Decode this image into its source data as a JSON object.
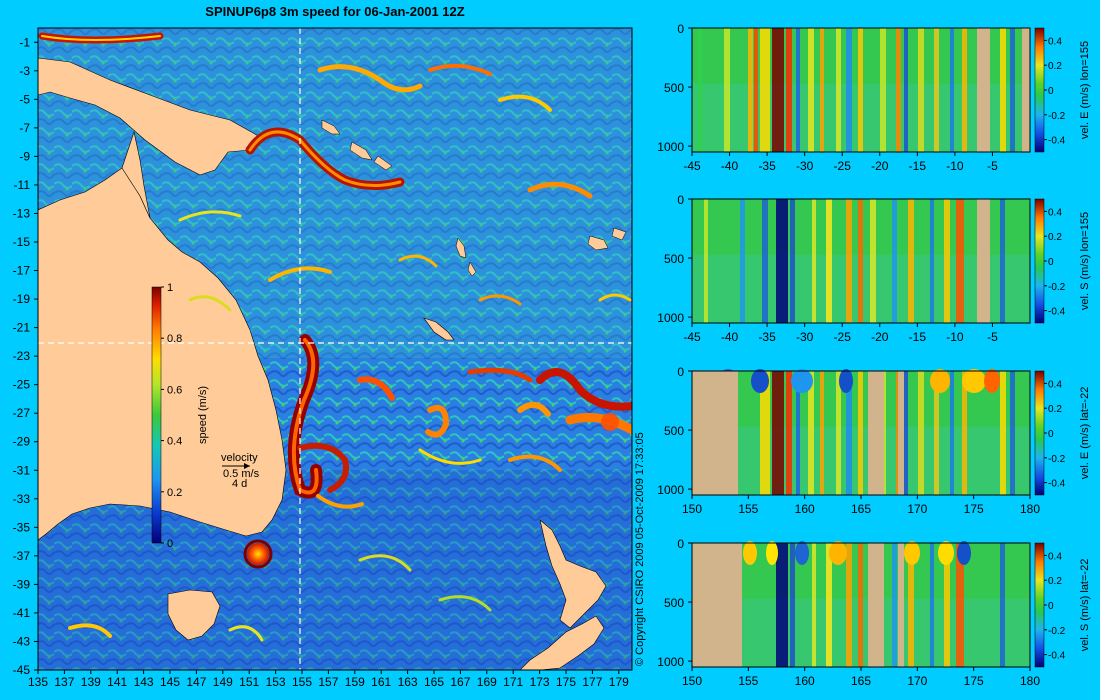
{
  "title": "SPINUP6p8 3m speed for 06-Jan-2001 12Z",
  "map": {
    "x_ticks": [
      "135",
      "137",
      "139",
      "141",
      "143",
      "145",
      "147",
      "149",
      "151",
      "153",
      "155",
      "157",
      "159",
      "161",
      "163",
      "165",
      "167",
      "169",
      "171",
      "173",
      "175",
      "177",
      "179"
    ],
    "y_ticks": [
      "-1",
      "-3",
      "-5",
      "-7",
      "-9",
      "-11",
      "-13",
      "-15",
      "-17",
      "-19",
      "-21",
      "-23",
      "-25",
      "-27",
      "-29",
      "-31",
      "-33",
      "-35",
      "-37",
      "-39",
      "-41",
      "-43",
      "-45"
    ],
    "lon_range": [
      135,
      180
    ],
    "lat_range": [
      -45,
      0
    ],
    "section_lon": 155,
    "section_lat": -22
  },
  "speed_colorbar": {
    "label": "speed (m/s)",
    "ticks": [
      "1",
      "0.8",
      "0.6",
      "0.4",
      "0.2",
      "0"
    ]
  },
  "velocity_key": {
    "line1": "velocity",
    "line2": "0.5 m/s",
    "line3": "4 d"
  },
  "copyright": "© Copyright CSIRO 2009   05-Oct-2009 17:33:05",
  "colors": {
    "background": "#00ccff",
    "land": "#ffcc99",
    "section_land": "#d2b48c",
    "ocean_low": "#1e64d2",
    "ocean_mid": "#2ec44a"
  },
  "sections": [
    {
      "label": "vel. E (m/s) lon=155",
      "x_ticks": [
        "-45",
        "-40",
        "-35",
        "-30",
        "-25",
        "-20",
        "-15",
        "-10",
        "-5"
      ],
      "y_ticks": [
        "0",
        "500",
        "1000"
      ],
      "cb_ticks": [
        "0.4",
        "0.2",
        "0",
        "-0.2",
        "-0.4"
      ]
    },
    {
      "label": "vel. S (m/s) lon=155",
      "x_ticks": [
        "-45",
        "-40",
        "-35",
        "-30",
        "-25",
        "-20",
        "-15",
        "-10",
        "-5"
      ],
      "y_ticks": [
        "0",
        "500",
        "1000"
      ],
      "cb_ticks": [
        "0.4",
        "0.2",
        "0",
        "-0.2",
        "-0.4"
      ]
    },
    {
      "label": "vel. E (m/s) lat=-22",
      "x_ticks": [
        "150",
        "155",
        "160",
        "165",
        "170",
        "175",
        "180"
      ],
      "y_ticks": [
        "0",
        "500",
        "1000"
      ],
      "cb_ticks": [
        "0.4",
        "0.2",
        "0",
        "-0.2",
        "-0.4"
      ]
    },
    {
      "label": "vel. S (m/s) lat=-22",
      "x_ticks": [
        "150",
        "155",
        "160",
        "165",
        "170",
        "175",
        "180"
      ],
      "y_ticks": [
        "0",
        "500",
        "1000"
      ],
      "cb_ticks": [
        "0.4",
        "0.2",
        "0",
        "-0.2",
        "-0.4"
      ]
    }
  ]
}
